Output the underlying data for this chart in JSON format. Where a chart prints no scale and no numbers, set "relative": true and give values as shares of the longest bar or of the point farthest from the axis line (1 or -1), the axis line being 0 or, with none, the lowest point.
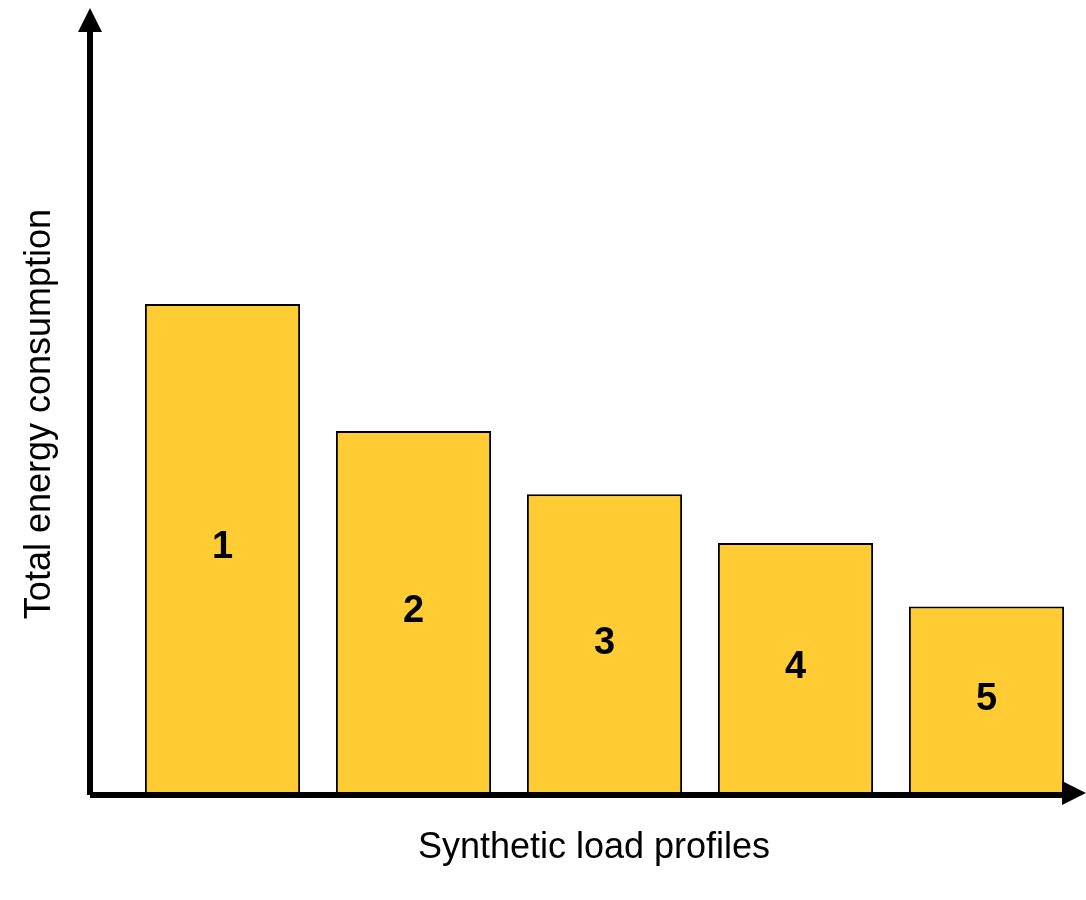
{
  "chart_data": {
    "type": "bar",
    "relative": true,
    "xlabel": "Synthetic load profiles",
    "ylabel": "Total energy consumption",
    "categories": [
      "1",
      "2",
      "3",
      "4",
      "5"
    ],
    "values": [
      1,
      0.74,
      0.61,
      0.51,
      0.38
    ],
    "color": "#ffcc33",
    "legend": false
  }
}
